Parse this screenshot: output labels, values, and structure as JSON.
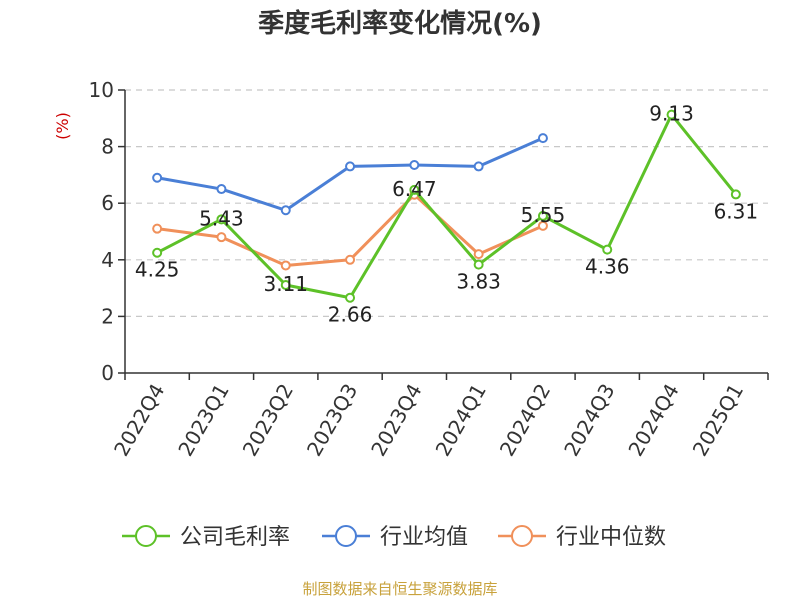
{
  "chart_data": {
    "type": "line",
    "title": "季度毛利率变化情况(%)",
    "ylabel": "(%)",
    "xlabel": "",
    "ylim": [
      0,
      10
    ],
    "yticks": [
      0,
      2,
      4,
      6,
      8,
      10
    ],
    "grid": true,
    "legend_position": "bottom",
    "categories": [
      "2022Q4",
      "2023Q1",
      "2023Q2",
      "2023Q3",
      "2023Q4",
      "2024Q1",
      "2024Q2",
      "2024Q3",
      "2024Q4",
      "2025Q1"
    ],
    "series": [
      {
        "name": "公司毛利率",
        "color": "#5dc128",
        "values": [
          4.25,
          5.43,
          3.11,
          2.66,
          6.47,
          3.83,
          5.55,
          4.36,
          9.13,
          6.31
        ],
        "labels": [
          "4.25",
          "5.43",
          "3.11",
          "2.66",
          "6.47",
          "3.83",
          "5.55",
          "4.36",
          "9.13",
          "6.31"
        ]
      },
      {
        "name": "行业均值",
        "color": "#4a7fd6",
        "values": [
          6.9,
          6.5,
          5.75,
          7.3,
          7.35,
          7.3,
          8.3,
          null,
          null,
          null
        ]
      },
      {
        "name": "行业中位数",
        "color": "#f0905a",
        "values": [
          5.1,
          4.8,
          3.8,
          4.0,
          6.3,
          4.2,
          5.2,
          null,
          null,
          null
        ]
      }
    ]
  },
  "source": "制图数据来自恒生聚源数据库"
}
